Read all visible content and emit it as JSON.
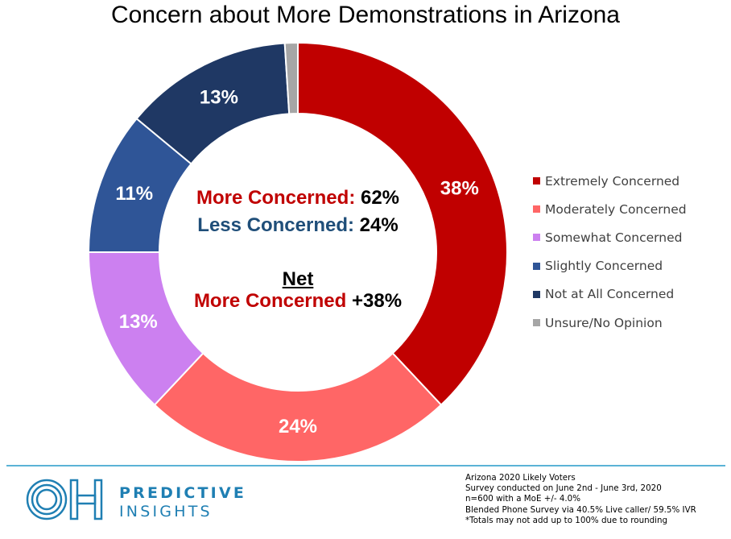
{
  "title": "Concern about More Demonstrations in Arizona",
  "chart_data": {
    "type": "pie",
    "title": "Concern about More Demonstrations in Arizona",
    "slices": [
      {
        "name": "Extremely Concerned",
        "value": 38,
        "label": "38%",
        "color": "#c00000"
      },
      {
        "name": "Moderately Concerned",
        "value": 24,
        "label": "24%",
        "color": "#ff6666"
      },
      {
        "name": "Somewhat Concerned",
        "value": 13,
        "label": "13%",
        "color": "#cc80f0"
      },
      {
        "name": "Slightly Concerned",
        "value": 11,
        "label": "11%",
        "color": "#2f5597"
      },
      {
        "name": "Not at All Concerned",
        "value": 13,
        "label": "13%",
        "color": "#1f3864"
      },
      {
        "name": "Unsure/No Opinion",
        "value": 1,
        "label": "",
        "color": "#a6a6a6"
      }
    ],
    "legend_position": "right"
  },
  "center": {
    "more_label": "More Concerned:",
    "more_value": "62%",
    "less_label": "Less Concerned:",
    "less_value": "24%",
    "net_heading": "Net",
    "net_label": "More Concerned",
    "net_value": "+38%"
  },
  "colors": {
    "more": "#c00000",
    "less": "#1f4e79",
    "accent_line": "#5bb3d6",
    "brand": "#1f7fb3"
  },
  "brand": {
    "logo_icon": "oh-logo-icon",
    "line1": "PREDICTIVE",
    "line2": "INSIGHTS"
  },
  "footnote": [
    "Arizona 2020 Likely Voters",
    "Survey conducted on June 2nd - June 3rd, 2020",
    "n=600 with a MoE +/- 4.0%",
    "Blended Phone Survey via 40.5% Live caller/ 59.5% IVR",
    "*Totals may not add up to 100% due to rounding"
  ]
}
